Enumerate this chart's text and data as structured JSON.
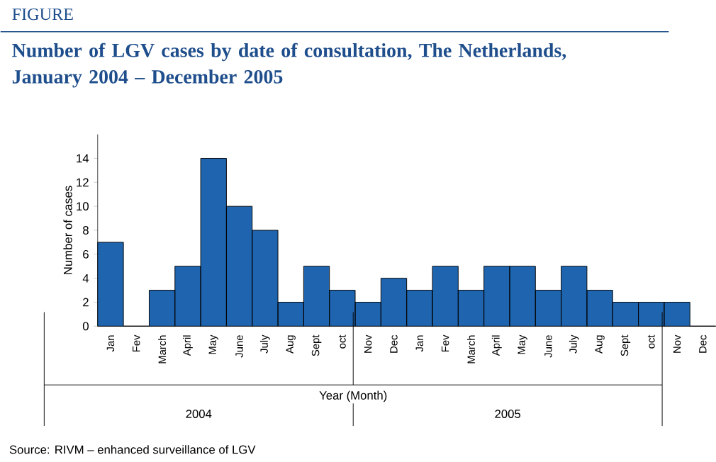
{
  "chart_data": {
    "type": "bar",
    "title": "Number of LGV cases by date of consultation, The Netherlands, January 2004 – December 2005",
    "xlabel": "Year (Month)",
    "ylabel": "Number of cases",
    "categories": [
      "Jan",
      "Fev",
      "March",
      "April",
      "May",
      "June",
      "July",
      "Aug",
      "Sept",
      "oct",
      "Nov",
      "Dec",
      "Jan",
      "Fev",
      "March",
      "April",
      "May",
      "June",
      "July",
      "Aug",
      "Sept",
      "oct",
      "Nov",
      "Dec"
    ],
    "values": [
      7,
      0,
      3,
      5,
      14,
      10,
      8,
      2,
      5,
      3,
      2,
      4,
      3,
      5,
      3,
      5,
      5,
      3,
      5,
      3,
      2,
      2,
      2,
      0
    ],
    "color": "#1f64ae",
    "ylim": [
      0,
      16
    ],
    "yticks": [
      0,
      2,
      4,
      6,
      8,
      10,
      12,
      14
    ],
    "grid": false,
    "annotations": [
      "FIGURE",
      "2004",
      "2005",
      "Source: RIVM – enhanced surveillance of LGV"
    ]
  }
}
